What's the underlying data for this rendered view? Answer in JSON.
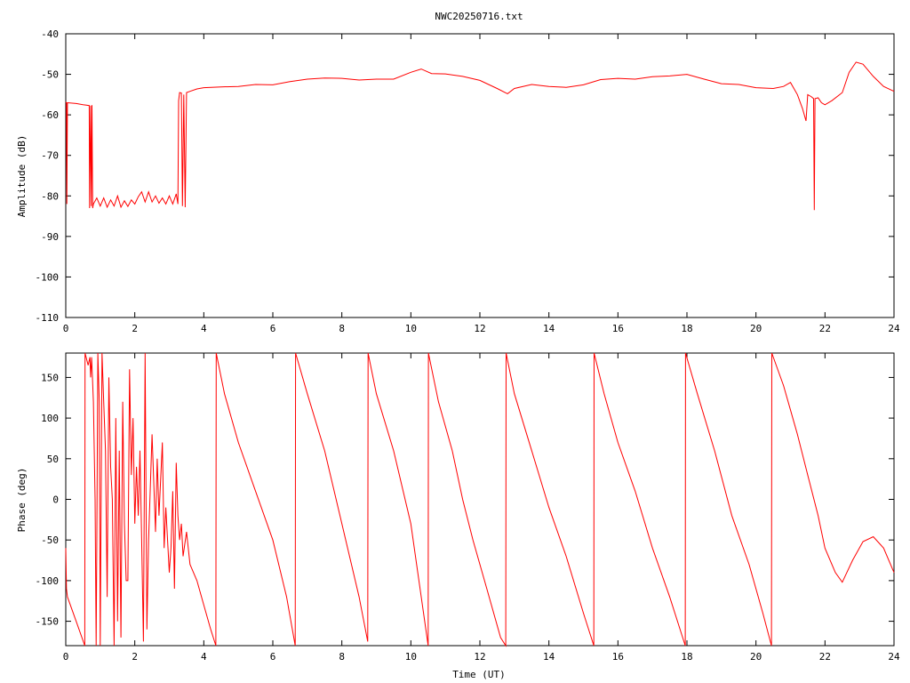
{
  "title": "NWC20250716.txt",
  "colors": {
    "series": "#ff0000",
    "axis": "#000000",
    "background": "#ffffff"
  },
  "chart_data": [
    {
      "type": "line",
      "title": "NWC20250716.txt",
      "xlabel": "",
      "ylabel": "Amplitude (dB)",
      "xlim": [
        0,
        24
      ],
      "ylim": [
        -110,
        -40
      ],
      "xticks": [
        0,
        2,
        4,
        6,
        8,
        10,
        12,
        14,
        16,
        18,
        20,
        22,
        24
      ],
      "yticks": [
        -110,
        -100,
        -90,
        -80,
        -70,
        -60,
        -50,
        -40
      ],
      "ytick_labels": [
        "-110",
        "-100",
        "-90",
        "-80",
        "-70",
        "-60",
        "-50",
        "-40"
      ],
      "grid": false,
      "series": [
        {
          "values": [
            [
              0.0,
              -56.8
            ],
            [
              0.02,
              -57.0
            ],
            [
              0.03,
              -82.0
            ],
            [
              0.05,
              -57.0
            ],
            [
              0.3,
              -57.2
            ],
            [
              0.5,
              -57.5
            ],
            [
              0.6,
              -57.6
            ],
            [
              0.68,
              -57.7
            ],
            [
              0.69,
              -83.0
            ],
            [
              0.72,
              -57.7
            ],
            [
              0.74,
              -82.5
            ],
            [
              0.76,
              -57.6
            ],
            [
              0.78,
              -83.0
            ],
            [
              0.8,
              -82.0
            ],
            [
              0.9,
              -80.5
            ],
            [
              1.0,
              -82.5
            ],
            [
              1.1,
              -80.5
            ],
            [
              1.2,
              -82.8
            ],
            [
              1.3,
              -81.0
            ],
            [
              1.4,
              -82.5
            ],
            [
              1.5,
              -80.0
            ],
            [
              1.6,
              -82.8
            ],
            [
              1.7,
              -81.2
            ],
            [
              1.8,
              -82.6
            ],
            [
              1.9,
              -81.0
            ],
            [
              2.0,
              -82.0
            ],
            [
              2.1,
              -80.2
            ],
            [
              2.2,
              -79.0
            ],
            [
              2.3,
              -81.5
            ],
            [
              2.4,
              -79.0
            ],
            [
              2.5,
              -81.5
            ],
            [
              2.6,
              -80.0
            ],
            [
              2.7,
              -81.8
            ],
            [
              2.8,
              -80.5
            ],
            [
              2.9,
              -82.0
            ],
            [
              3.0,
              -80.0
            ],
            [
              3.1,
              -82.0
            ],
            [
              3.2,
              -79.5
            ],
            [
              3.25,
              -82.0
            ],
            [
              3.27,
              -56.5
            ],
            [
              3.3,
              -54.5
            ],
            [
              3.35,
              -54.6
            ],
            [
              3.38,
              -82.5
            ],
            [
              3.42,
              -55.0
            ],
            [
              3.46,
              -82.8
            ],
            [
              3.5,
              -54.5
            ],
            [
              3.6,
              -54.2
            ],
            [
              3.8,
              -53.6
            ],
            [
              4.0,
              -53.3
            ],
            [
              4.5,
              -53.1
            ],
            [
              5.0,
              -53.0
            ],
            [
              5.5,
              -52.5
            ],
            [
              6.0,
              -52.6
            ],
            [
              6.5,
              -51.8
            ],
            [
              7.0,
              -51.2
            ],
            [
              7.5,
              -50.9
            ],
            [
              8.0,
              -51.0
            ],
            [
              8.5,
              -51.4
            ],
            [
              9.0,
              -51.2
            ],
            [
              9.5,
              -51.2
            ],
            [
              10.0,
              -49.5
            ],
            [
              10.3,
              -48.7
            ],
            [
              10.6,
              -49.8
            ],
            [
              11.0,
              -49.9
            ],
            [
              11.5,
              -50.5
            ],
            [
              12.0,
              -51.5
            ],
            [
              12.5,
              -53.5
            ],
            [
              12.8,
              -54.8
            ],
            [
              13.0,
              -53.5
            ],
            [
              13.5,
              -52.5
            ],
            [
              14.0,
              -53.0
            ],
            [
              14.5,
              -53.2
            ],
            [
              15.0,
              -52.6
            ],
            [
              15.5,
              -51.3
            ],
            [
              16.0,
              -51.0
            ],
            [
              16.5,
              -51.2
            ],
            [
              17.0,
              -50.6
            ],
            [
              17.5,
              -50.4
            ],
            [
              18.0,
              -50.0
            ],
            [
              18.5,
              -51.2
            ],
            [
              19.0,
              -52.3
            ],
            [
              19.5,
              -52.5
            ],
            [
              20.0,
              -53.3
            ],
            [
              20.5,
              -53.5
            ],
            [
              20.8,
              -53.0
            ],
            [
              21.0,
              -52.0
            ],
            [
              21.2,
              -55.0
            ],
            [
              21.35,
              -58.5
            ],
            [
              21.45,
              -61.5
            ],
            [
              21.5,
              -55.0
            ],
            [
              21.6,
              -55.5
            ],
            [
              21.67,
              -56.0
            ],
            [
              21.69,
              -83.5
            ],
            [
              21.71,
              -56.0
            ],
            [
              21.8,
              -55.8
            ],
            [
              21.9,
              -57.0
            ],
            [
              22.0,
              -57.5
            ],
            [
              22.2,
              -56.5
            ],
            [
              22.5,
              -54.5
            ],
            [
              22.7,
              -49.5
            ],
            [
              22.9,
              -47.0
            ],
            [
              23.1,
              -47.5
            ],
            [
              23.4,
              -50.5
            ],
            [
              23.7,
              -53.0
            ],
            [
              24.0,
              -54.2
            ]
          ]
        }
      ]
    },
    {
      "type": "line",
      "title": "",
      "xlabel": "Time (UT)",
      "ylabel": "Phase (deg)",
      "xlim": [
        0,
        24
      ],
      "ylim": [
        -180,
        180
      ],
      "xticks": [
        0,
        2,
        4,
        6,
        8,
        10,
        12,
        14,
        16,
        18,
        20,
        22,
        24
      ],
      "yticks": [
        -150,
        -100,
        -50,
        0,
        50,
        100,
        150
      ],
      "ytick_labels": [
        "-150",
        "-100",
        "-50",
        "0",
        "50",
        "100",
        "150"
      ],
      "grid": false,
      "series": [
        {
          "values": [
            [
              0.0,
              -60
            ],
            [
              0.02,
              -110
            ],
            [
              0.05,
              -120
            ],
            [
              0.3,
              -150
            ],
            [
              0.55,
              -180
            ],
            [
              0.56,
              180
            ],
            [
              0.65,
              165
            ],
            [
              0.7,
              175
            ],
            [
              0.72,
              150
            ],
            [
              0.75,
              175
            ],
            [
              0.8,
              120
            ],
            [
              0.85,
              0
            ],
            [
              0.88,
              -180
            ],
            [
              0.9,
              -60
            ],
            [
              0.93,
              180
            ],
            [
              0.97,
              120
            ],
            [
              1.0,
              -180
            ],
            [
              1.05,
              180
            ],
            [
              1.1,
              120
            ],
            [
              1.15,
              60
            ],
            [
              1.2,
              -120
            ],
            [
              1.25,
              150
            ],
            [
              1.3,
              40
            ],
            [
              1.35,
              0
            ],
            [
              1.4,
              -180
            ],
            [
              1.45,
              100
            ],
            [
              1.5,
              -150
            ],
            [
              1.55,
              60
            ],
            [
              1.6,
              -170
            ],
            [
              1.65,
              120
            ],
            [
              1.7,
              -30
            ],
            [
              1.75,
              -100
            ],
            [
              1.8,
              -100
            ],
            [
              1.85,
              160
            ],
            [
              1.9,
              30
            ],
            [
              1.95,
              100
            ],
            [
              2.0,
              -30
            ],
            [
              2.05,
              40
            ],
            [
              2.1,
              -20
            ],
            [
              2.15,
              60
            ],
            [
              2.2,
              -50
            ],
            [
              2.25,
              -175
            ],
            [
              2.3,
              180
            ],
            [
              2.35,
              -160
            ],
            [
              2.4,
              -50
            ],
            [
              2.5,
              80
            ],
            [
              2.6,
              -40
            ],
            [
              2.65,
              50
            ],
            [
              2.7,
              -20
            ],
            [
              2.8,
              70
            ],
            [
              2.85,
              -60
            ],
            [
              2.9,
              -10
            ],
            [
              3.0,
              -90
            ],
            [
              3.05,
              -60
            ],
            [
              3.1,
              10
            ],
            [
              3.15,
              -110
            ],
            [
              3.2,
              45
            ],
            [
              3.25,
              -20
            ],
            [
              3.3,
              -50
            ],
            [
              3.35,
              -30
            ],
            [
              3.4,
              -70
            ],
            [
              3.5,
              -40
            ],
            [
              3.6,
              -80
            ],
            [
              3.8,
              -100
            ],
            [
              4.0,
              -130
            ],
            [
              4.2,
              -160
            ],
            [
              4.35,
              -180
            ],
            [
              4.36,
              180
            ],
            [
              4.6,
              130
            ],
            [
              5.0,
              70
            ],
            [
              5.5,
              10
            ],
            [
              6.0,
              -50
            ],
            [
              6.4,
              -120
            ],
            [
              6.65,
              -180
            ],
            [
              6.66,
              180
            ],
            [
              7.0,
              130
            ],
            [
              7.5,
              60
            ],
            [
              8.0,
              -30
            ],
            [
              8.5,
              -120
            ],
            [
              8.75,
              -175
            ],
            [
              8.76,
              180
            ],
            [
              9.0,
              130
            ],
            [
              9.5,
              60
            ],
            [
              10.0,
              -30
            ],
            [
              10.3,
              -120
            ],
            [
              10.5,
              -180
            ],
            [
              10.51,
              180
            ],
            [
              10.8,
              120
            ],
            [
              11.2,
              60
            ],
            [
              11.5,
              0
            ],
            [
              11.8,
              -50
            ],
            [
              12.2,
              -110
            ],
            [
              12.6,
              -170
            ],
            [
              12.75,
              -180
            ],
            [
              12.76,
              180
            ],
            [
              13.0,
              130
            ],
            [
              13.5,
              60
            ],
            [
              14.0,
              -10
            ],
            [
              14.5,
              -70
            ],
            [
              15.0,
              -140
            ],
            [
              15.3,
              -180
            ],
            [
              15.31,
              180
            ],
            [
              15.6,
              130
            ],
            [
              16.0,
              70
            ],
            [
              16.5,
              10
            ],
            [
              17.0,
              -60
            ],
            [
              17.5,
              -120
            ],
            [
              17.95,
              -180
            ],
            [
              17.96,
              180
            ],
            [
              18.3,
              130
            ],
            [
              18.8,
              60
            ],
            [
              19.3,
              -20
            ],
            [
              19.8,
              -80
            ],
            [
              20.2,
              -140
            ],
            [
              20.45,
              -180
            ],
            [
              20.46,
              180
            ],
            [
              20.8,
              140
            ],
            [
              21.2,
              80
            ],
            [
              21.5,
              30
            ],
            [
              21.8,
              -20
            ],
            [
              22.0,
              -60
            ],
            [
              22.3,
              -90
            ],
            [
              22.5,
              -102
            ],
            [
              22.8,
              -75
            ],
            [
              23.1,
              -52
            ],
            [
              23.4,
              -46
            ],
            [
              23.7,
              -60
            ],
            [
              24.0,
              -90
            ]
          ]
        }
      ]
    }
  ]
}
